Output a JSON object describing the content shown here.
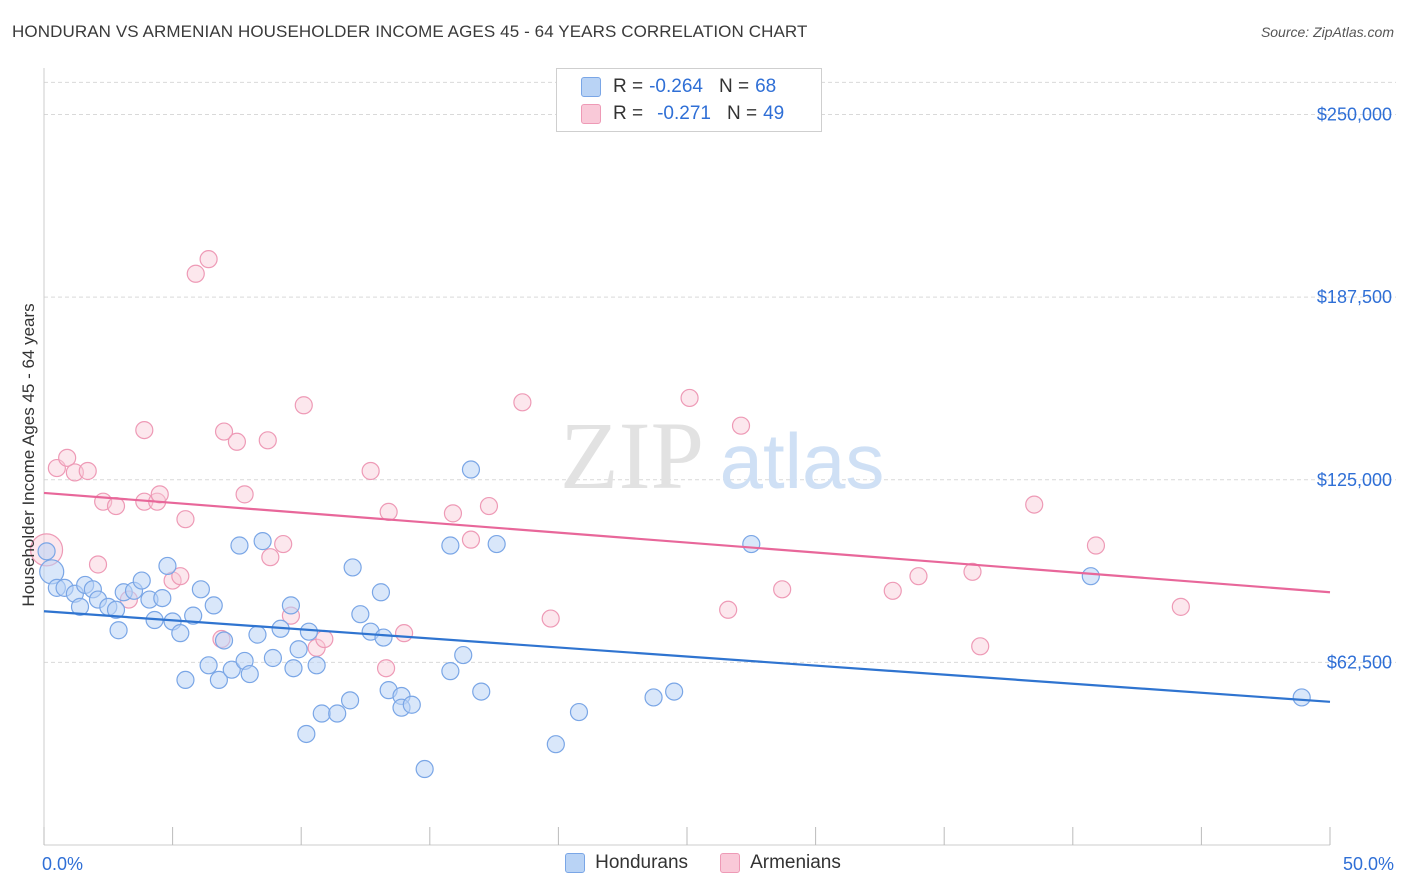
{
  "title": "HONDURAN VS ARMENIAN HOUSEHOLDER INCOME AGES 45 - 64 YEARS CORRELATION CHART",
  "source": "Source: ZipAtlas.com",
  "watermark": {
    "zip": "ZIP",
    "atlas": "atlas"
  },
  "legend_top": {
    "rows": [
      {
        "r_label": "R =",
        "r_value": "-0.264",
        "n_label": "N =",
        "n_value": "68"
      },
      {
        "r_label": "R =",
        "r_value": "-0.271",
        "n_label": "N =",
        "n_value": "49"
      }
    ]
  },
  "legend_bottom": {
    "hondurans": "Hondurans",
    "armenians": "Armenians"
  },
  "colors": {
    "hondurans_fill": "#b9d3f5",
    "hondurans_stroke": "#7aa6e6",
    "hondurans_line": "#2f74d0",
    "armenians_fill": "#f9c9d8",
    "armenians_stroke": "#ee9ab6",
    "armenians_line": "#e8679a",
    "axis_label": "#2f6fd6",
    "grid": "#d9d9d9"
  },
  "chart_data": {
    "type": "scatter",
    "title": "HONDURAN VS ARMENIAN HOUSEHOLDER INCOME AGES 45 - 64 YEARS CORRELATION CHART",
    "xlabel": "",
    "ylabel": "Householder Income Ages 45 - 64 years",
    "xlim": [
      0,
      50
    ],
    "ylim": [
      0,
      262500
    ],
    "x_tick_labels": [
      "0.0%",
      "50.0%"
    ],
    "y_ticks": [
      62500,
      125000,
      187500,
      250000
    ],
    "y_tick_labels": [
      "$62,500",
      "$125,000",
      "$187,500",
      "$250,000"
    ],
    "grid": true,
    "legend_position": "top-center",
    "series": [
      {
        "name": "Hondurans",
        "r": -0.264,
        "n": 68,
        "trend": {
          "x": [
            0,
            50
          ],
          "y": [
            80000,
            49000
          ]
        },
        "points": [
          [
            0.3,
            93500
          ],
          [
            0.5,
            88000
          ],
          [
            0.8,
            88000
          ],
          [
            1.2,
            86000
          ],
          [
            1.4,
            81500
          ],
          [
            1.6,
            89000
          ],
          [
            1.9,
            87500
          ],
          [
            2.1,
            84000
          ],
          [
            2.5,
            81500
          ],
          [
            2.8,
            80500
          ],
          [
            2.9,
            73500
          ],
          [
            3.1,
            86500
          ],
          [
            3.5,
            87000
          ],
          [
            3.8,
            90500
          ],
          [
            4.1,
            84000
          ],
          [
            4.3,
            77000
          ],
          [
            4.6,
            84500
          ],
          [
            4.8,
            95500
          ],
          [
            5.0,
            76500
          ],
          [
            5.3,
            72500
          ],
          [
            5.5,
            56500
          ],
          [
            5.8,
            78500
          ],
          [
            6.1,
            87500
          ],
          [
            6.4,
            61500
          ],
          [
            6.6,
            82000
          ],
          [
            6.8,
            56500
          ],
          [
            7.0,
            70000
          ],
          [
            7.3,
            60000
          ],
          [
            7.6,
            102500
          ],
          [
            7.8,
            63000
          ],
          [
            8.0,
            58500
          ],
          [
            8.3,
            72000
          ],
          [
            8.5,
            104000
          ],
          [
            8.9,
            64000
          ],
          [
            9.2,
            74000
          ],
          [
            9.6,
            82000
          ],
          [
            9.7,
            60500
          ],
          [
            9.9,
            67000
          ],
          [
            10.3,
            73000
          ],
          [
            10.6,
            61500
          ],
          [
            10.8,
            45000
          ],
          [
            10.2,
            38000
          ],
          [
            11.4,
            45000
          ],
          [
            11.9,
            49500
          ],
          [
            12.3,
            79000
          ],
          [
            12.7,
            73000
          ],
          [
            12.0,
            95000
          ],
          [
            13.1,
            86500
          ],
          [
            13.2,
            71000
          ],
          [
            13.4,
            53000
          ],
          [
            13.9,
            51000
          ],
          [
            13.9,
            47000
          ],
          [
            14.3,
            48000
          ],
          [
            14.8,
            26000
          ],
          [
            15.8,
            59500
          ],
          [
            15.8,
            102500
          ],
          [
            16.3,
            65000
          ],
          [
            16.6,
            128500
          ],
          [
            17.0,
            52500
          ],
          [
            17.6,
            103000
          ],
          [
            19.9,
            34500
          ],
          [
            20.8,
            45500
          ],
          [
            23.7,
            50500
          ],
          [
            24.5,
            52500
          ],
          [
            27.5,
            103000
          ],
          [
            40.7,
            92000
          ],
          [
            48.9,
            50500
          ],
          [
            0.1,
            100500
          ]
        ]
      },
      {
        "name": "Armenians",
        "r": -0.271,
        "n": 49,
        "trend": {
          "x": [
            0,
            50
          ],
          "y": [
            120500,
            86500
          ]
        },
        "points": [
          [
            0.1,
            101000
          ],
          [
            0.5,
            129000
          ],
          [
            0.9,
            132500
          ],
          [
            1.2,
            127500
          ],
          [
            1.7,
            128000
          ],
          [
            2.1,
            96000
          ],
          [
            2.3,
            117500
          ],
          [
            2.8,
            116000
          ],
          [
            3.3,
            84000
          ],
          [
            3.9,
            117500
          ],
          [
            3.9,
            142000
          ],
          [
            4.4,
            117500
          ],
          [
            4.5,
            120000
          ],
          [
            5.0,
            90500
          ],
          [
            5.3,
            92000
          ],
          [
            5.5,
            111500
          ],
          [
            5.9,
            195500
          ],
          [
            6.4,
            200500
          ],
          [
            6.9,
            70500
          ],
          [
            7.0,
            141500
          ],
          [
            7.5,
            138000
          ],
          [
            7.8,
            120000
          ],
          [
            8.7,
            138500
          ],
          [
            8.8,
            98500
          ],
          [
            9.3,
            103000
          ],
          [
            9.6,
            78500
          ],
          [
            10.1,
            150500
          ],
          [
            10.6,
            67500
          ],
          [
            10.9,
            70500
          ],
          [
            12.7,
            128000
          ],
          [
            13.3,
            60500
          ],
          [
            13.4,
            114000
          ],
          [
            14.0,
            72500
          ],
          [
            15.9,
            113500
          ],
          [
            16.6,
            104500
          ],
          [
            17.3,
            116000
          ],
          [
            18.6,
            151500
          ],
          [
            19.7,
            77500
          ],
          [
            25.1,
            153000
          ],
          [
            26.6,
            80500
          ],
          [
            27.1,
            143500
          ],
          [
            28.7,
            87500
          ],
          [
            33.0,
            87000
          ],
          [
            34.0,
            92000
          ],
          [
            36.1,
            93500
          ],
          [
            36.4,
            68000
          ],
          [
            38.5,
            116500
          ],
          [
            40.9,
            102500
          ],
          [
            44.2,
            81500
          ]
        ]
      }
    ]
  }
}
